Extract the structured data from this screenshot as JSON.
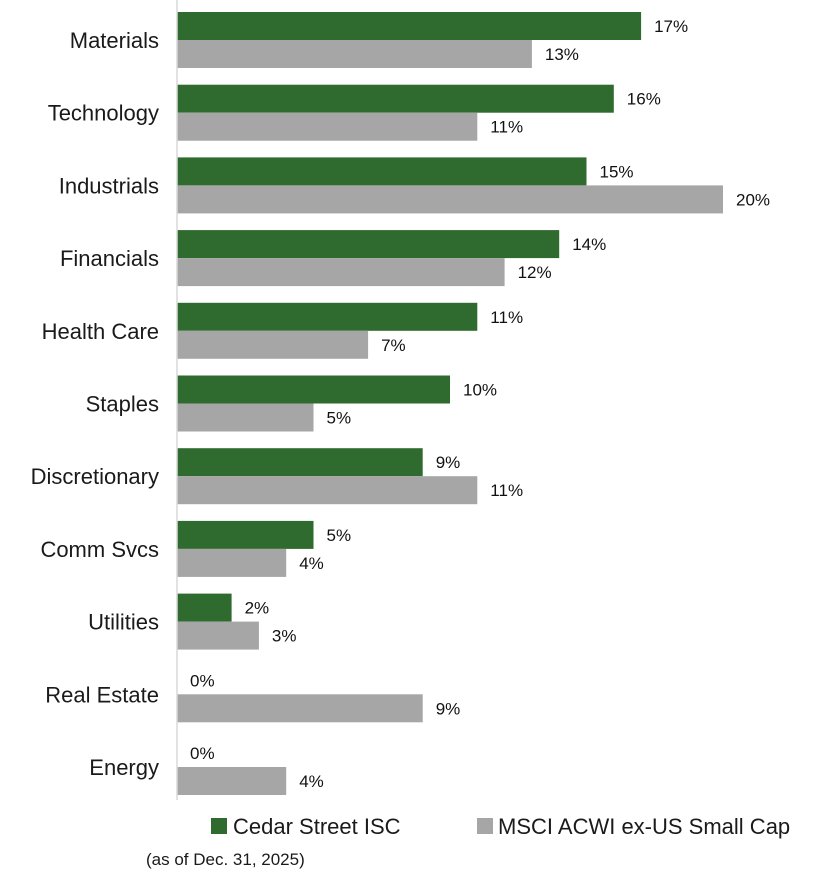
{
  "chart_data": {
    "type": "bar",
    "orientation": "horizontal",
    "categories": [
      "Materials",
      "Technology",
      "Industrials",
      "Financials",
      "Health Care",
      "Staples",
      "Discretionary",
      "Comm Svcs",
      "Utilities",
      "Real Estate",
      "Energy"
    ],
    "series": [
      {
        "name": "Cedar Street ISC",
        "color": "#2f6a2e",
        "values": [
          17,
          16,
          15,
          14,
          11,
          10,
          9,
          5,
          2,
          0,
          0
        ],
        "labels": [
          "17%",
          "16%",
          "15%",
          "14%",
          "11%",
          "10%",
          "9%",
          "5%",
          "2%",
          "0%",
          "0%"
        ]
      },
      {
        "name": "MSCI ACWI ex-US Small Cap",
        "color": "#a6a6a6",
        "values": [
          13,
          11,
          20,
          12,
          7,
          5,
          11,
          4,
          3,
          9,
          4
        ],
        "labels": [
          "13%",
          "11%",
          "20%",
          "12%",
          "7%",
          "5%",
          "11%",
          "4%",
          "3%",
          "9%",
          "4%"
        ]
      }
    ],
    "xlim": [
      0,
      22
    ],
    "grid": false,
    "legend_position": "bottom",
    "note": "(as of Dec. 31, 2025)",
    "axis_color": "#d9d9d9"
  }
}
